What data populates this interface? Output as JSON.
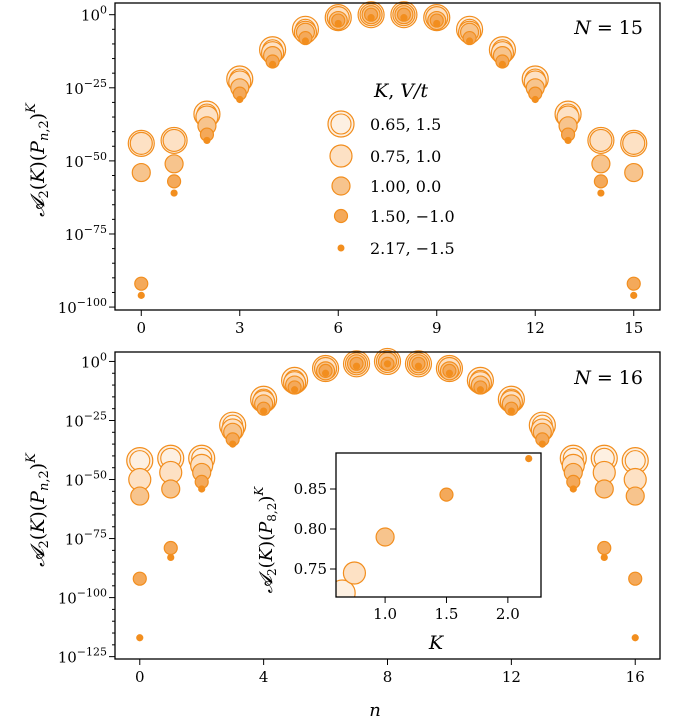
{
  "colors": {
    "edge": "#f28e1e",
    "fill": "#f7c48d",
    "light": "#fde6cc"
  },
  "legend": {
    "title": "K, V/t",
    "entries": [
      "0.65, 1.5",
      "0.75, 1.0",
      "1.00, 0.0",
      "1.50, −1.0",
      "2.17, −1.5"
    ]
  },
  "chart_data": [
    {
      "type": "scatter",
      "title": "N = 15",
      "xlabel": "",
      "ylabel": "A2(K)(P_{n,2})^K",
      "xlim": [
        -0.8,
        15.8
      ],
      "ylim_exponent": [
        -101,
        4
      ],
      "yscale": "log",
      "xticks": [
        0,
        3,
        6,
        9,
        12,
        15
      ],
      "yticks_exponent": [
        0,
        -25,
        -50,
        -75,
        -100
      ],
      "series": [
        {
          "name": "0.65, 1.5",
          "x": [
            0,
            1,
            2,
            3,
            4,
            5,
            6,
            7,
            8,
            9,
            10,
            11,
            12,
            13,
            14,
            15
          ],
          "y_exponent": [
            -44,
            -43,
            -34,
            -22,
            -12,
            -5,
            -1,
            0,
            0,
            -1,
            -5,
            -12,
            -22,
            -34,
            -43,
            -44
          ]
        },
        {
          "name": "0.75, 1.0",
          "x": [
            0,
            1,
            2,
            3,
            4,
            5,
            6,
            7,
            8,
            9,
            10,
            11,
            12,
            13,
            14,
            15
          ],
          "y_exponent": [
            -44,
            -43,
            -35,
            -23,
            -13,
            -6,
            -1,
            0,
            0,
            -1,
            -6,
            -13,
            -23,
            -35,
            -43,
            -44
          ]
        },
        {
          "name": "1.00, 0.0",
          "x": [
            0,
            1,
            2,
            3,
            4,
            5,
            6,
            7,
            8,
            9,
            10,
            11,
            12,
            13,
            14,
            15
          ],
          "y_exponent": [
            -54,
            -51,
            -38,
            -25,
            -14,
            -6,
            -2,
            0,
            0,
            -2,
            -6,
            -14,
            -25,
            -38,
            -51,
            -54
          ]
        },
        {
          "name": "1.50, −1.0",
          "x": [
            0,
            1,
            2,
            3,
            4,
            5,
            6,
            7,
            8,
            9,
            10,
            11,
            12,
            13,
            14,
            15
          ],
          "y_exponent": [
            -92,
            -57,
            -41,
            -27,
            -16,
            -8,
            -2,
            0,
            0,
            -2,
            -8,
            -16,
            -27,
            -41,
            -57,
            -92
          ]
        },
        {
          "name": "2.17, −1.5",
          "x": [
            0,
            1,
            2,
            3,
            4,
            5,
            6,
            7,
            8,
            9,
            10,
            11,
            12,
            13,
            14,
            15
          ],
          "y_exponent": [
            -96,
            -61,
            -43,
            -29,
            -17,
            -9,
            -3,
            -1,
            -1,
            -3,
            -9,
            -17,
            -29,
            -43,
            -61,
            -96
          ]
        }
      ]
    },
    {
      "type": "scatter",
      "title": "N = 16",
      "xlabel": "n",
      "ylabel": "A2(K)(P_{n,2})^K",
      "xlim": [
        -0.8,
        16.8
      ],
      "ylim_exponent": [
        -126,
        4
      ],
      "yscale": "log",
      "xticks": [
        0,
        4,
        8,
        12,
        16
      ],
      "yticks_exponent": [
        0,
        -25,
        -50,
        -75,
        -100,
        -125
      ],
      "series": [
        {
          "name": "0.65, 1.5",
          "x": [
            0,
            1,
            2,
            3,
            4,
            5,
            6,
            7,
            8,
            9,
            10,
            11,
            12,
            13,
            14,
            15,
            16
          ],
          "y_exponent": [
            -42,
            -41,
            -41,
            -27,
            -16,
            -8,
            -3,
            -1,
            0,
            -1,
            -3,
            -8,
            -16,
            -27,
            -41,
            -41,
            -42
          ]
        },
        {
          "name": "0.75, 1.0",
          "x": [
            0,
            1,
            2,
            3,
            4,
            5,
            6,
            7,
            8,
            9,
            10,
            11,
            12,
            13,
            14,
            15,
            16
          ],
          "y_exponent": [
            -50,
            -47,
            -44,
            -29,
            -17,
            -9,
            -3,
            -1,
            0,
            -1,
            -3,
            -9,
            -17,
            -29,
            -44,
            -47,
            -50
          ]
        },
        {
          "name": "1.00, 0.0",
          "x": [
            0,
            1,
            2,
            3,
            4,
            5,
            6,
            7,
            8,
            9,
            10,
            11,
            12,
            13,
            14,
            15,
            16
          ],
          "y_exponent": [
            -57,
            -54,
            -47,
            -30,
            -18,
            -10,
            -4,
            -1,
            0,
            -1,
            -4,
            -10,
            -18,
            -30,
            -47,
            -54,
            -57
          ]
        },
        {
          "name": "1.50, −1.0",
          "x": [
            0,
            1,
            2,
            3,
            4,
            5,
            6,
            7,
            8,
            9,
            10,
            11,
            12,
            13,
            14,
            15,
            16
          ],
          "y_exponent": [
            -92,
            -79,
            -51,
            -33,
            -20,
            -11,
            -4,
            -1,
            -1,
            -1,
            -4,
            -11,
            -20,
            -33,
            -51,
            -79,
            -92
          ]
        },
        {
          "name": "2.17, −1.5",
          "x": [
            0,
            1,
            2,
            3,
            4,
            5,
            6,
            7,
            8,
            9,
            10,
            11,
            12,
            13,
            14,
            15,
            16
          ],
          "y_exponent": [
            -117,
            -83,
            -54,
            -35,
            -21,
            -12,
            -5,
            -2,
            -1,
            -2,
            -5,
            -12,
            -21,
            -35,
            -54,
            -83,
            -117
          ]
        }
      ]
    },
    {
      "type": "scatter",
      "title": "",
      "xlabel": "K",
      "ylabel": "A2(K)(P_{8,2})^K",
      "xlim": [
        0.6,
        2.27
      ],
      "ylim": [
        0.715,
        0.895
      ],
      "xticks": [
        1.0,
        1.5,
        2.0
      ],
      "yticks": [
        0.75,
        0.8,
        0.85
      ],
      "series": [
        {
          "name": "points",
          "x": [
            0.65,
            0.75,
            1.0,
            1.5,
            2.17
          ],
          "y": [
            0.72,
            0.745,
            0.79,
            0.843,
            0.888
          ]
        }
      ]
    }
  ],
  "tick_labels": {
    "top_y": [
      "10^0",
      "10^−25",
      "10^−50",
      "10^−75",
      "10^−100"
    ],
    "top_x": [
      "0",
      "3",
      "6",
      "9",
      "12",
      "15"
    ],
    "bottom_y": [
      "10^0",
      "10^−25",
      "10^−50",
      "10^−75",
      "10^−100",
      "10^−125"
    ],
    "bottom_x": [
      "0",
      "4",
      "8",
      "12",
      "16"
    ],
    "inset_y": [
      "0.75",
      "0.80",
      "0.85"
    ],
    "inset_x": [
      "1.0",
      "1.5",
      "2.0"
    ]
  }
}
